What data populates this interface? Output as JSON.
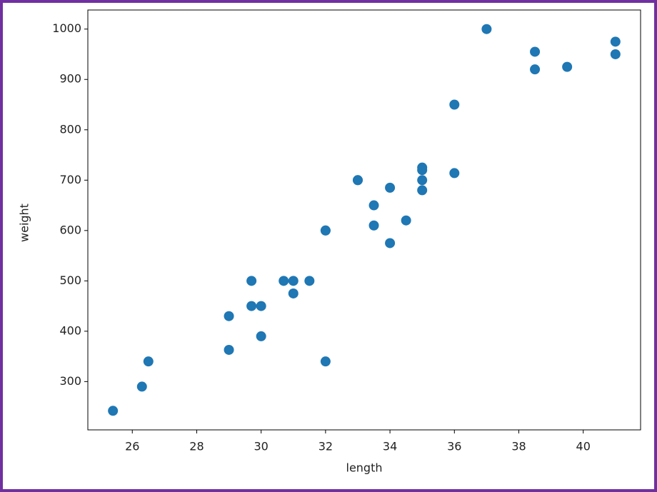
{
  "chart_data": {
    "type": "scatter",
    "xlabel": "length",
    "ylabel": "weight",
    "color": "#1f77b4",
    "grid": false,
    "x": [
      25.4,
      26.3,
      26.5,
      29.0,
      29.0,
      29.7,
      29.7,
      30.0,
      30.0,
      30.7,
      31.0,
      31.0,
      31.5,
      32.0,
      32.0,
      32.0,
      33.0,
      33.0,
      33.5,
      33.5,
      34.0,
      34.0,
      34.5,
      35.0,
      35.0,
      35.0,
      35.0,
      36.0,
      36.0,
      37.0,
      38.5,
      38.5,
      39.5,
      41.0,
      41.0
    ],
    "values": [
      242,
      290,
      340,
      363,
      430,
      450,
      500,
      390,
      450,
      500,
      475,
      500,
      500,
      340,
      600,
      600,
      700,
      700,
      610,
      650,
      575,
      685,
      620,
      680,
      700,
      725,
      720,
      714,
      850,
      1000,
      920,
      955,
      925,
      975,
      950
    ],
    "xlim": [
      24.62,
      41.78
    ],
    "ylim": [
      204.1,
      1037.9
    ],
    "xticks": [
      26,
      28,
      30,
      32,
      34,
      36,
      38,
      40
    ],
    "yticks": [
      300,
      400,
      500,
      600,
      700,
      800,
      900,
      1000
    ]
  }
}
